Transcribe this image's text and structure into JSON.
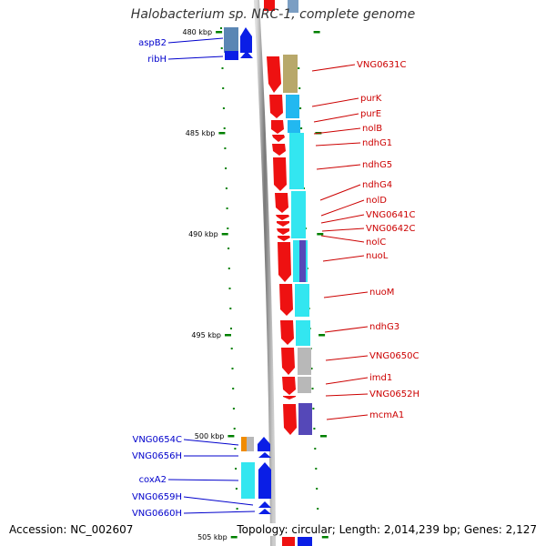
{
  "title": "Halobacterium sp. NRC-1, complete genome",
  "footer": {
    "accession": "Accession: NC_002607",
    "summary": "Topology: circular; Length: 2,014,239 bp; Genes: 2,127"
  },
  "ticks": [
    {
      "label": "480 kbp",
      "kbp": 480
    },
    {
      "label": "485 kbp",
      "kbp": 485
    },
    {
      "label": "490 kbp",
      "kbp": 490
    },
    {
      "label": "495 kbp",
      "kbp": 495
    },
    {
      "label": "500 kbp",
      "kbp": 500
    },
    {
      "label": "505 kbp",
      "kbp": 505
    }
  ],
  "forward_labels": [
    {
      "text": "VNG0631C",
      "color": "#cc0000"
    },
    {
      "text": "purK",
      "color": "#cc0000"
    },
    {
      "text": "purE",
      "color": "#cc0000"
    },
    {
      "text": "nolB",
      "color": "#cc0000"
    },
    {
      "text": "ndhG1",
      "color": "#cc0000"
    },
    {
      "text": "ndhG5",
      "color": "#cc0000"
    },
    {
      "text": "ndhG4",
      "color": "#cc0000"
    },
    {
      "text": "nolD",
      "color": "#cc0000"
    },
    {
      "text": "VNG0641C",
      "color": "#cc0000"
    },
    {
      "text": "VNG0642C",
      "color": "#cc0000"
    },
    {
      "text": "nolC",
      "color": "#cc0000"
    },
    {
      "text": "nuoL",
      "color": "#cc0000"
    },
    {
      "text": "nuoM",
      "color": "#cc0000"
    },
    {
      "text": "ndhG3",
      "color": "#cc0000"
    },
    {
      "text": "VNG0650C",
      "color": "#cc0000"
    },
    {
      "text": "imd1",
      "color": "#cc0000"
    },
    {
      "text": "VNG0652H",
      "color": "#cc0000"
    },
    {
      "text": "mcmA1",
      "color": "#cc0000"
    }
  ],
  "reverse_labels": [
    {
      "text": "aspB2",
      "color": "#0000cc"
    },
    {
      "text": "ribH",
      "color": "#0000cc"
    },
    {
      "text": "VNG0654C",
      "color": "#0000cc"
    },
    {
      "text": "VNG0656H",
      "color": "#0000cc"
    },
    {
      "text": "coxA2",
      "color": "#0000cc"
    },
    {
      "text": "VNG0659H",
      "color": "#0000cc"
    },
    {
      "text": "VNG0660H",
      "color": "#0000cc"
    }
  ],
  "colors": {
    "forward_strand": "#ee1111",
    "reverse_strand": "#0a1ee6",
    "backbone": "#888888",
    "tick_mark": "#008000",
    "cog_cyan": "#33e6f0",
    "cog_skyblue": "#22b8f0",
    "cog_olive": "#b8a86a",
    "cog_gray": "#b8b8b8",
    "cog_indigo": "#5548b8",
    "cog_steel": "#5a86b4",
    "cog_orange": "#f08c00"
  }
}
